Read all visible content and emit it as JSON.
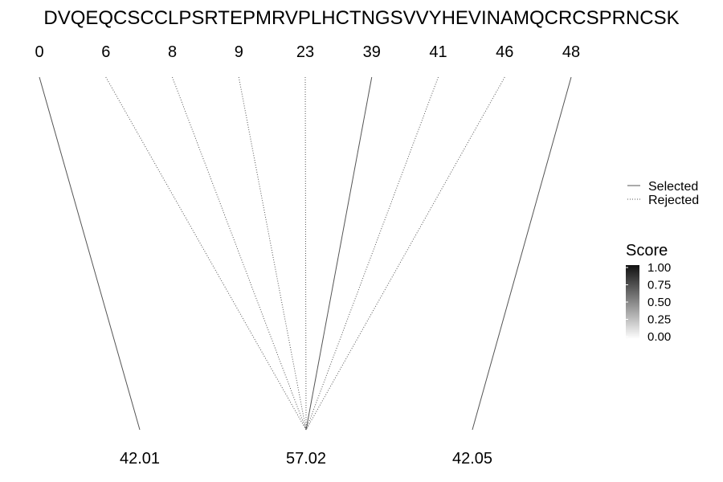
{
  "chart_data": {
    "type": "line",
    "sequence": "DVQEQCSCCLPSRTEPMRVPLHCTNGSVVYHEVINAMQCRCSPRNCSK",
    "top_positions": [
      "0",
      "6",
      "8",
      "9",
      "23",
      "39",
      "41",
      "46",
      "48"
    ],
    "bottom_values": [
      "42.01",
      "57.02",
      "42.05"
    ],
    "links": [
      {
        "from": "0",
        "to": "42.01",
        "status": "Selected"
      },
      {
        "from": "6",
        "to": "57.02",
        "status": "Rejected"
      },
      {
        "from": "8",
        "to": "57.02",
        "status": "Rejected"
      },
      {
        "from": "9",
        "to": "57.02",
        "status": "Rejected"
      },
      {
        "from": "23",
        "to": "57.02",
        "status": "Rejected"
      },
      {
        "from": "39",
        "to": "57.02",
        "status": "Selected"
      },
      {
        "from": "41",
        "to": "57.02",
        "status": "Rejected"
      },
      {
        "from": "46",
        "to": "57.02",
        "status": "Rejected"
      },
      {
        "from": "48",
        "to": "42.05",
        "status": "Selected"
      }
    ],
    "legend": {
      "placement": "right",
      "items": [
        {
          "label": "Selected",
          "style": "solid"
        },
        {
          "label": "Rejected",
          "style": "dotted"
        }
      ]
    },
    "colorbar": {
      "title": "Score",
      "ticks": [
        "1.00",
        "0.75",
        "0.50",
        "0.25",
        "0.00"
      ],
      "range": [
        0,
        1
      ],
      "color_high": "#111111",
      "color_low": "#ffffff"
    },
    "line_color": "#555555"
  }
}
